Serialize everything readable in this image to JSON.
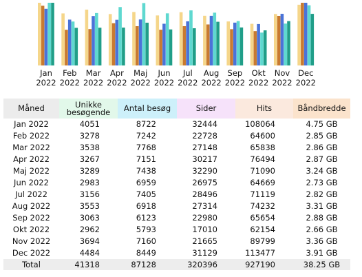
{
  "chart_data": {
    "type": "bar",
    "categories": [
      "Jan 2022",
      "Feb 2022",
      "Mar 2022",
      "Apr 2022",
      "Maj 2022",
      "Jun 2022",
      "Jul 2022",
      "Aug 2022",
      "Sep 2022",
      "Okt 2022",
      "Nov 2022",
      "Dec 2022"
    ],
    "series": [
      {
        "name": "Unikke besøgende",
        "values": [
          4051,
          3278,
          3538,
          3267,
          3289,
          2983,
          3156,
          3553,
          3063,
          2962,
          3694,
          4484
        ]
      },
      {
        "name": "Antal besøg",
        "values": [
          8722,
          7242,
          7768,
          7151,
          7438,
          6959,
          7405,
          6918,
          6123,
          5793,
          7160,
          8449
        ]
      },
      {
        "name": "Sider",
        "values": [
          32444,
          22728,
          27148,
          30217,
          32290,
          26975,
          28496,
          27314,
          22980,
          17010,
          21665,
          31129
        ]
      },
      {
        "name": "Hits",
        "values": [
          108064,
          64600,
          65838,
          76494,
          71090,
          64669,
          71119,
          74232,
          65654,
          62154,
          89799,
          113477
        ]
      },
      {
        "name": "Båndbredde",
        "values": [
          4.75,
          2.85,
          2.86,
          2.87,
          3.24,
          2.73,
          2.82,
          3.31,
          2.88,
          2.66,
          3.36,
          3.91
        ]
      }
    ],
    "colors": [
      "#f5d68a",
      "#c87a30",
      "#4a73d8",
      "#5fd8d0",
      "#209e88"
    ]
  },
  "table": {
    "headers": [
      "Måned",
      "Unikke besøgende",
      "Antal besøg",
      "Sider",
      "Hits",
      "Båndbredde"
    ],
    "rows": [
      [
        "Jan 2022",
        "4051",
        "8722",
        "32444",
        "108064",
        "4.75 GB"
      ],
      [
        "Feb 2022",
        "3278",
        "7242",
        "22728",
        "64600",
        "2.85 GB"
      ],
      [
        "Mar 2022",
        "3538",
        "7768",
        "27148",
        "65838",
        "2.86 GB"
      ],
      [
        "Apr 2022",
        "3267",
        "7151",
        "30217",
        "76494",
        "2.87 GB"
      ],
      [
        "Maj 2022",
        "3289",
        "7438",
        "32290",
        "71090",
        "3.24 GB"
      ],
      [
        "Jun 2022",
        "2983",
        "6959",
        "26975",
        "64669",
        "2.73 GB"
      ],
      [
        "Jul 2022",
        "3156",
        "7405",
        "28496",
        "71119",
        "2.82 GB"
      ],
      [
        "Aug 2022",
        "3553",
        "6918",
        "27314",
        "74232",
        "3.31 GB"
      ],
      [
        "Sep 2022",
        "3063",
        "6123",
        "22980",
        "65654",
        "2.88 GB"
      ],
      [
        "Okt 2022",
        "2962",
        "5793",
        "17010",
        "62154",
        "2.66 GB"
      ],
      [
        "Nov 2022",
        "3694",
        "7160",
        "21665",
        "89799",
        "3.36 GB"
      ],
      [
        "Dec 2022",
        "4484",
        "8449",
        "31129",
        "113477",
        "3.91 GB"
      ]
    ],
    "total": [
      "Total",
      "41318",
      "87128",
      "320396",
      "927190",
      "38.25 GB"
    ],
    "header_colors": [
      "#ececec",
      "#e2f8ea",
      "#cdf0fa",
      "#f6e2fa",
      "#fbe9de",
      "#fbe3cc"
    ]
  }
}
